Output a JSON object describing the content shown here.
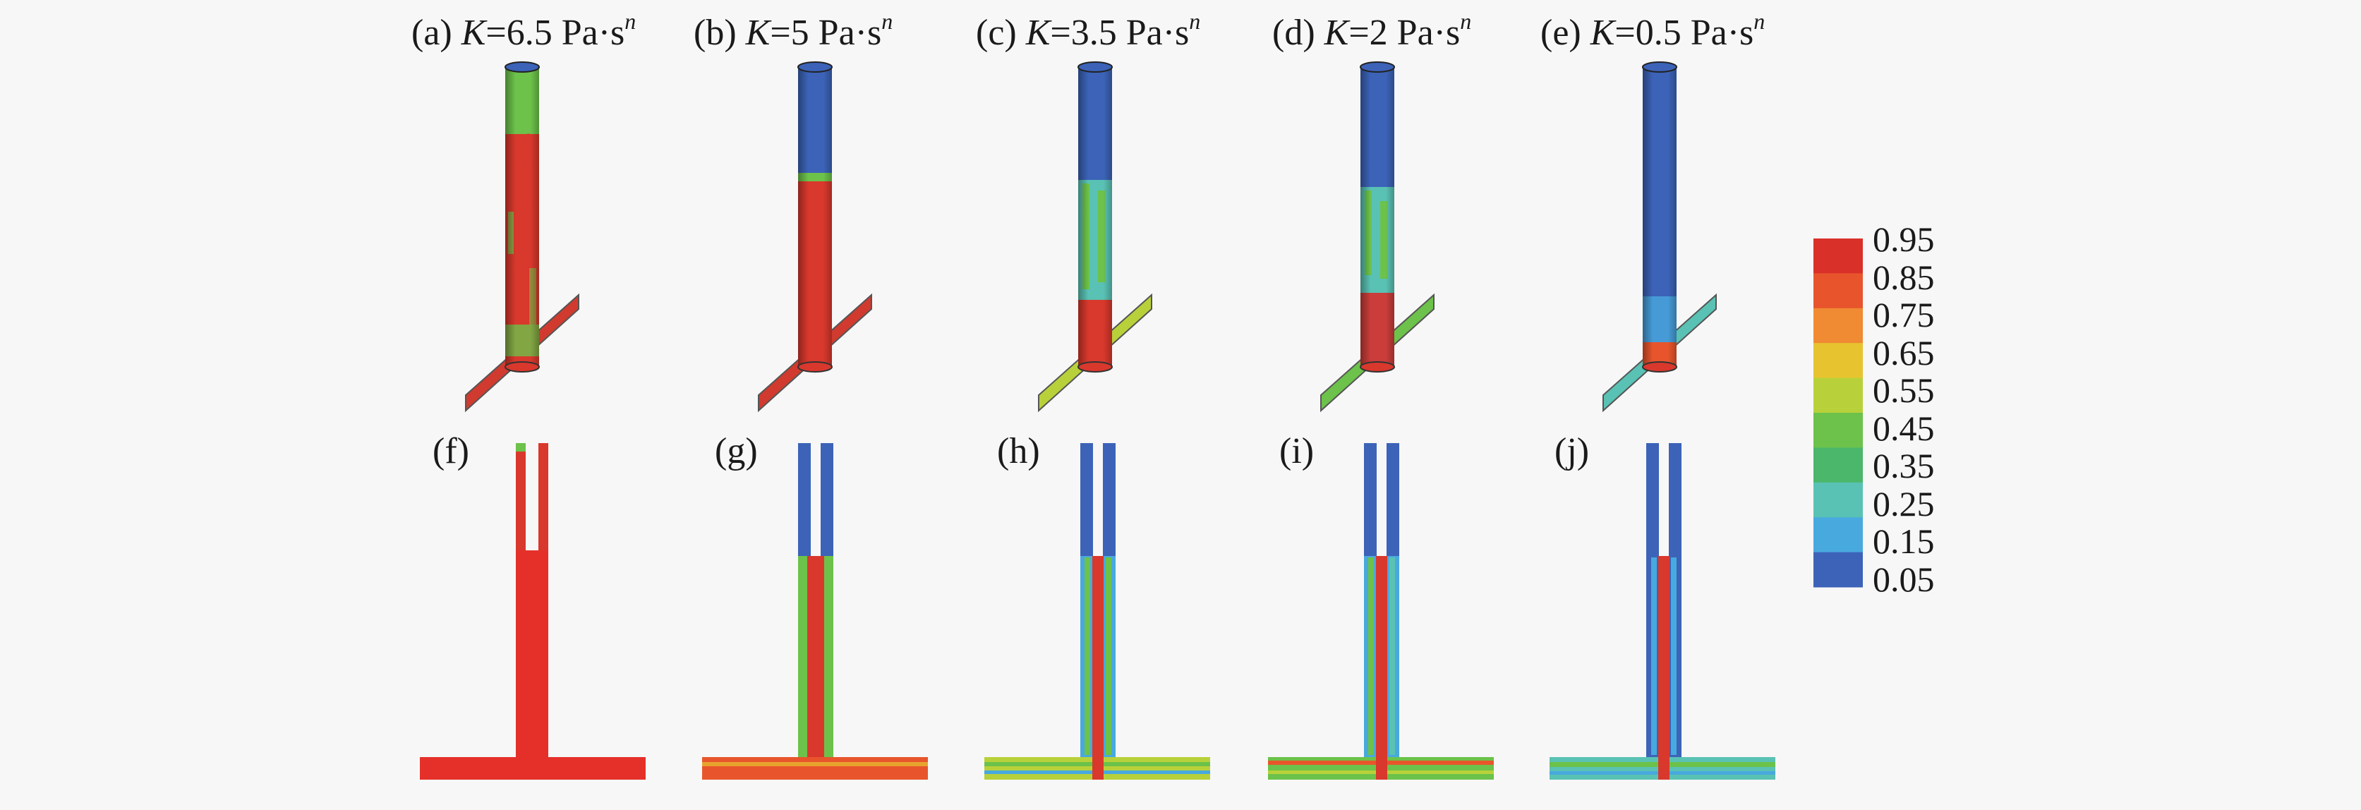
{
  "panels_top": [
    {
      "letter": "(a)",
      "k_value": "=6.5 Pa·s"
    },
    {
      "letter": "(b)",
      "k_value": "=5 Pa·s"
    },
    {
      "letter": "(c)",
      "k_value": "=3.5 Pa·s"
    },
    {
      "letter": "(d)",
      "k_value": "=2 Pa·s"
    },
    {
      "letter": "(e)",
      "k_value": "=0.5 Pa·s"
    }
  ],
  "k_symbol": "K",
  "n_symbol": "n",
  "panels_bottom": [
    "(f)",
    "(g)",
    "(h)",
    "(i)",
    "(j)"
  ],
  "legend": {
    "ticks": [
      "0.95",
      "0.85",
      "0.75",
      "0.65",
      "0.55",
      "0.45",
      "0.35",
      "0.25",
      "0.15",
      "0.05"
    ],
    "colors": [
      "#d9302a",
      "#e8552c",
      "#f08a33",
      "#e7c42f",
      "#b8d13a",
      "#6cc24a",
      "#4ab76b",
      "#59c2b4",
      "#48a9de",
      "#3c63b8"
    ]
  }
}
